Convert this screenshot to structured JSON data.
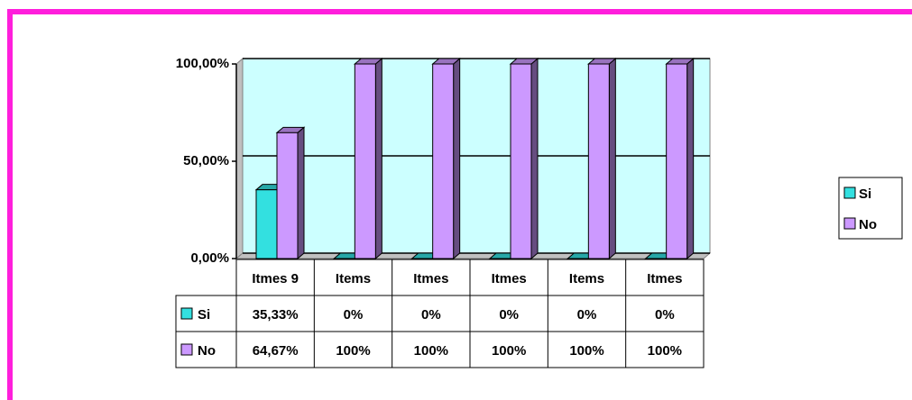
{
  "chart_data": {
    "type": "bar",
    "categories": [
      "Itmes 9",
      "Items",
      "Itmes",
      "Itmes",
      "Items",
      "Itmes"
    ],
    "series": [
      {
        "name": "Si",
        "color": "#33e0e0",
        "values": [
          35.33,
          0,
          0,
          0,
          0,
          0
        ],
        "value_labels": [
          "35,33%",
          "0%",
          "0%",
          "0%",
          "0%",
          "0%"
        ]
      },
      {
        "name": "No",
        "color": "#cc99ff",
        "values": [
          64.67,
          100,
          100,
          100,
          100,
          100
        ],
        "value_labels": [
          "64,67%",
          "100%",
          "100%",
          "100%",
          "100%",
          "100%"
        ]
      }
    ],
    "ylim": [
      0,
      100
    ],
    "yticks": [
      {
        "value": 0,
        "label": "0,00%"
      },
      {
        "value": 50,
        "label": "50,00%"
      },
      {
        "value": 100,
        "label": "100,00%"
      }
    ],
    "grid": true,
    "legend": "right",
    "wall_color": "#ccffff"
  }
}
